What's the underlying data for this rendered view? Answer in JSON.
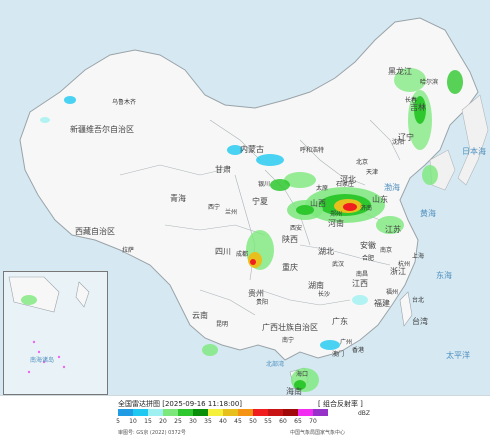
{
  "title": "全国雷达拼图 [2025-09-16 11:18:00]",
  "product": "[ 组合反射率 ]",
  "unit": "dBZ",
  "approval": "审图号: GS京 (2022) 0372号",
  "source": "中国气象局国家气象中心",
  "legend": {
    "values": [
      "5",
      "10",
      "15",
      "20",
      "25",
      "30",
      "35",
      "40",
      "45",
      "50",
      "55",
      "60",
      "65",
      "70"
    ],
    "colors": [
      "#1f9ce4",
      "#1ec8f0",
      "#9ff0f0",
      "#7ce87c",
      "#2ec82e",
      "#0a8f0a",
      "#f5f03c",
      "#e8c01e",
      "#f59414",
      "#f01e1e",
      "#c81414",
      "#a00a0a",
      "#f02df0",
      "#9632c8"
    ]
  },
  "colors": {
    "land": "#f7f7f7",
    "sea": "#d6e9f2",
    "border": "#9aa3a8"
  },
  "region_labels": [
    {
      "name": "新疆维吾尔自治区",
      "type": "region"
    },
    {
      "name": "西藏自治区",
      "type": "region"
    },
    {
      "name": "青海",
      "type": "region"
    },
    {
      "name": "甘肃",
      "type": "region"
    },
    {
      "name": "内蒙古",
      "type": "region"
    },
    {
      "name": "四川",
      "type": "region"
    },
    {
      "name": "云南",
      "type": "region"
    },
    {
      "name": "贵州",
      "type": "region"
    },
    {
      "name": "广西壮族自治区",
      "type": "region"
    },
    {
      "name": "广东",
      "type": "region"
    },
    {
      "name": "湖南",
      "type": "region"
    },
    {
      "name": "湖北",
      "type": "region"
    },
    {
      "name": "河南",
      "type": "region"
    },
    {
      "name": "山东",
      "type": "region"
    },
    {
      "name": "江苏",
      "type": "region"
    },
    {
      "name": "安徽",
      "type": "region"
    },
    {
      "name": "浙江",
      "type": "region"
    },
    {
      "name": "江西",
      "type": "region"
    },
    {
      "name": "福建",
      "type": "region"
    },
    {
      "name": "台湾",
      "type": "region"
    },
    {
      "name": "辽宁",
      "type": "region"
    },
    {
      "name": "吉林",
      "type": "region"
    },
    {
      "name": "黑龙江",
      "type": "region"
    },
    {
      "name": "陕西",
      "type": "region"
    },
    {
      "name": "山西",
      "type": "region"
    },
    {
      "name": "河北",
      "type": "region"
    },
    {
      "name": "宁夏",
      "type": "region"
    },
    {
      "name": "重庆",
      "type": "region"
    },
    {
      "name": "海南",
      "type": "region"
    },
    {
      "name": "乌鲁木齐",
      "type": "city"
    },
    {
      "name": "拉萨",
      "type": "city"
    },
    {
      "name": "西宁",
      "type": "city"
    },
    {
      "name": "兰州",
      "type": "city"
    },
    {
      "name": "哈尔滨",
      "type": "city"
    },
    {
      "name": "长春",
      "type": "city"
    },
    {
      "name": "沈阳",
      "type": "city"
    },
    {
      "name": "北京",
      "type": "city"
    },
    {
      "name": "天津",
      "type": "city"
    },
    {
      "name": "济南",
      "type": "city"
    },
    {
      "name": "南京",
      "type": "city"
    },
    {
      "name": "上海",
      "type": "city"
    },
    {
      "name": "杭州",
      "type": "city"
    },
    {
      "name": "合肥",
      "type": "city"
    },
    {
      "name": "武汉",
      "type": "city"
    },
    {
      "name": "长沙",
      "type": "city"
    },
    {
      "name": "南昌",
      "type": "city"
    },
    {
      "name": "福州",
      "type": "city"
    },
    {
      "name": "台北",
      "type": "city"
    },
    {
      "name": "广州",
      "type": "city"
    },
    {
      "name": "南宁",
      "type": "city"
    },
    {
      "name": "海口",
      "type": "city"
    },
    {
      "name": "贵阳",
      "type": "city"
    },
    {
      "name": "昆明",
      "type": "city"
    },
    {
      "name": "成都",
      "type": "city"
    },
    {
      "name": "西安",
      "type": "city"
    },
    {
      "name": "郑州",
      "type": "city"
    },
    {
      "name": "太原",
      "type": "city"
    },
    {
      "name": "石家庄",
      "type": "city"
    },
    {
      "name": "银川",
      "type": "city"
    },
    {
      "name": "呼和浩特",
      "type": "city"
    },
    {
      "name": "香港",
      "type": "city"
    },
    {
      "name": "澳门",
      "type": "city"
    },
    {
      "name": "日本海",
      "type": "sea"
    },
    {
      "name": "黄海",
      "type": "sea"
    },
    {
      "name": "东海",
      "type": "sea"
    },
    {
      "name": "太平洋",
      "type": "sea"
    },
    {
      "name": "渤海",
      "type": "sea"
    },
    {
      "name": "南海诸岛",
      "type": "sea"
    },
    {
      "name": "北部湾",
      "type": "sea"
    }
  ]
}
